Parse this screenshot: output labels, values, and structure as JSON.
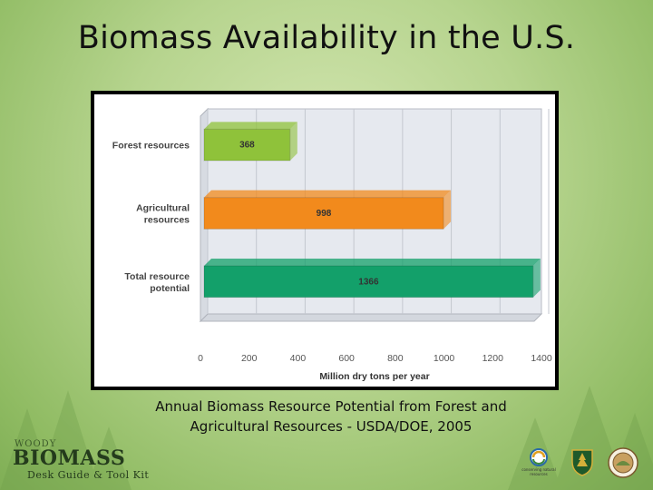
{
  "slide": {
    "title": "Biomass Availability in the U.S.",
    "caption_line1": "Annual Biomass Resource Potential from Forest and",
    "caption_line2": "Agricultural Resources - USDA/DOE, 2005"
  },
  "logo": {
    "word_top": "WOODY",
    "word_main": "BIOMASS",
    "word_sub": "Desk Guide & Tool Kit"
  },
  "seals": [
    {
      "name": "conserving-natural-resources-seal",
      "label": "conserving natural resources",
      "icon": "swirl-icon"
    },
    {
      "name": "usda-forest-service-shield",
      "label": "",
      "icon": "shield-icon"
    },
    {
      "name": "department-seal",
      "label": "",
      "icon": "round-seal-icon"
    }
  ],
  "chart_data": {
    "type": "bar",
    "orientation": "horizontal",
    "categories": [
      "Forest resources",
      "Agricultural resources",
      "Total resource potential"
    ],
    "category_label_lines": [
      [
        "Forest resources"
      ],
      [
        "Agricultural",
        "resources"
      ],
      [
        "Total resource",
        "potential"
      ]
    ],
    "values": [
      368,
      998,
      1366
    ],
    "data_labels": [
      "368",
      "998",
      "1366"
    ],
    "colors": [
      "#8fc23a",
      "#f28a1c",
      "#13a06a"
    ],
    "xlabel": "Million dry tons per year",
    "ylabel": "",
    "xlim": [
      0,
      1400
    ],
    "xticks": [
      "0",
      "200",
      "400",
      "600",
      "800",
      "1000",
      "1200",
      "1400"
    ],
    "grid": true,
    "style": "3d"
  }
}
